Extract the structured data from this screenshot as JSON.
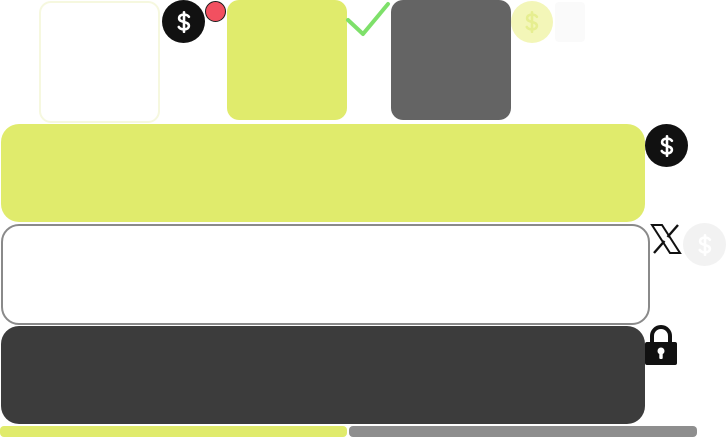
{
  "icons": {
    "coin_top_left": "dollar-coin-icon",
    "coin_top_right": "dollar-coin-icon",
    "coin_card_right": "dollar-coin-icon",
    "coin_faint_right": "dollar-coin-icon",
    "notification": "notification-dot-icon",
    "check": "checkmark-icon",
    "x_brand": "x-logo-icon",
    "lock": "lock-icon"
  },
  "colors": {
    "accent_lime": "#e0eb6c",
    "dark": "#3c3c3c",
    "gray": "#646464",
    "outline": "#8a8a8a",
    "check_green": "#7ee06a",
    "notification_red": "#f25060"
  }
}
